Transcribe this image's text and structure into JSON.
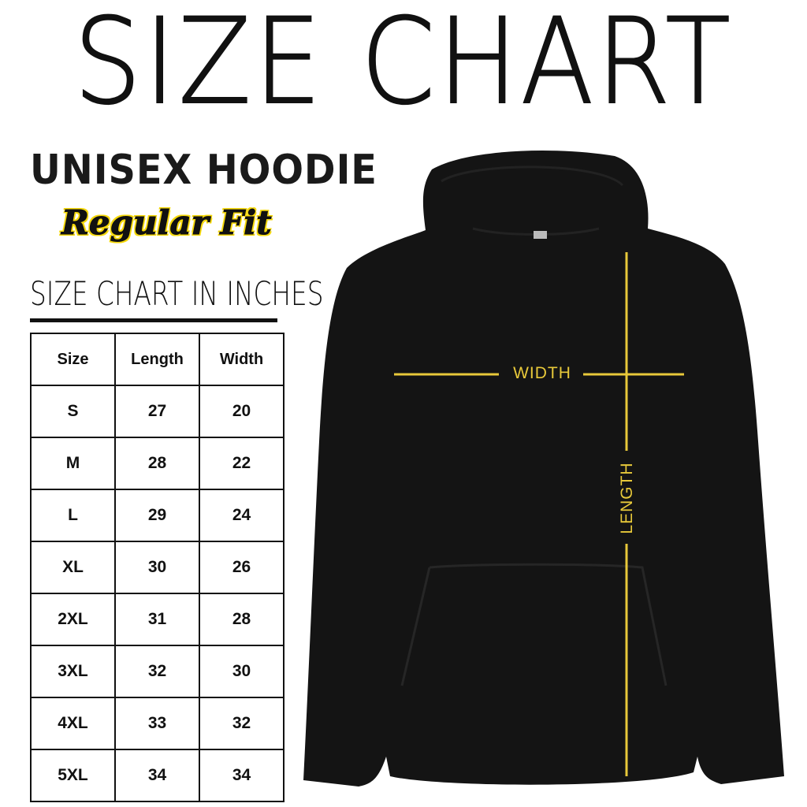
{
  "title": "SIZE CHART",
  "product": "UNISEX HOODIE",
  "fit": "Regular Fit",
  "units_heading": "SIZE CHART IN INCHES",
  "table": {
    "headers": [
      "Size",
      "Length",
      "Width"
    ],
    "rows": [
      [
        "S",
        "27",
        "20"
      ],
      [
        "M",
        "28",
        "22"
      ],
      [
        "L",
        "29",
        "24"
      ],
      [
        "XL",
        "30",
        "26"
      ],
      [
        "2XL",
        "31",
        "28"
      ],
      [
        "3XL",
        "32",
        "30"
      ],
      [
        "4XL",
        "33",
        "32"
      ],
      [
        "5XL",
        "34",
        "34"
      ]
    ]
  },
  "diagram": {
    "width_label": "WIDTH",
    "length_label": "LENGTH",
    "line_color": "#e8c93a",
    "garment_color": "#141414"
  }
}
